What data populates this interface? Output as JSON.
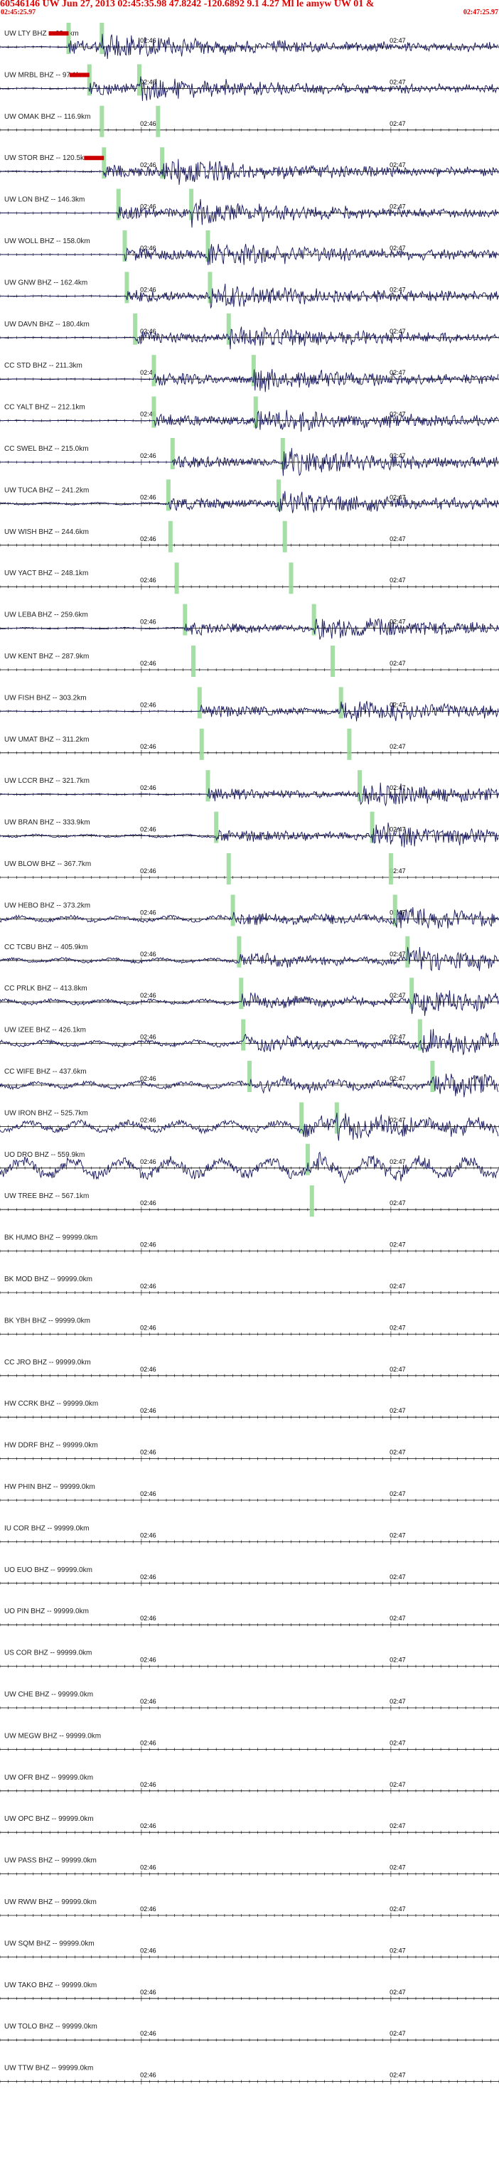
{
  "header": {
    "title": "60546146 UW Jun 27, 2013 02:45:35.98   47.8242  -120.6892  9.1 4.27 Ml le amyw UW 01   &",
    "start_time": "02:45:25.97",
    "end_time": "02:47:25.97"
  },
  "colors": {
    "header_red": "#e00000",
    "trace": "#14145a",
    "pick_marker": "#9bdc9b",
    "baseline": "#000000",
    "phase_flag": "#cc0000"
  },
  "chart_data": {
    "type": "line",
    "title": "60546146 UW Jun 27, 2013 02:45:35.98   47.8242  -120.6892  9.1 4.27 Ml le amyw UW 01   &",
    "time_range": [
      "02:45:25.97",
      "02:47:25.97"
    ],
    "time_ticks": [
      "02:46",
      "02:47"
    ],
    "channels": [
      {
        "label": "UW LTY BHZ -- 63.4km",
        "has_signal": true,
        "p_time": 16.5,
        "s_time": 24.5,
        "p_flag": true,
        "noise": 0.15
      },
      {
        "label": "UW MRBL BHZ -- 97.1km",
        "has_signal": true,
        "p_time": 21.5,
        "s_time": 33.5,
        "p_flag": true,
        "noise": 0.15
      },
      {
        "label": "UW OMAK BHZ -- 116.9km",
        "has_signal": false,
        "p_time": 24.5,
        "s_time": 38.0,
        "p_flag": false,
        "noise": 0
      },
      {
        "label": "UW STOR BHZ -- 120.5km",
        "has_signal": true,
        "p_time": 25.0,
        "s_time": 39.0,
        "p_flag": true,
        "noise": 0.15
      },
      {
        "label": "UW LON BHZ -- 146.3km",
        "has_signal": true,
        "p_time": 28.5,
        "s_time": 46.0,
        "p_flag": false,
        "noise": 0.05
      },
      {
        "label": "UW WOLL BHZ -- 158.0km",
        "has_signal": true,
        "p_time": 30.0,
        "s_time": 50.0,
        "p_flag": false,
        "noise": 0.05
      },
      {
        "label": "UW GNW BHZ -- 162.4km",
        "has_signal": true,
        "p_time": 30.5,
        "s_time": 50.5,
        "p_flag": false,
        "noise": 0.1
      },
      {
        "label": "UW DAVN BHZ -- 180.4km",
        "has_signal": true,
        "p_time": 32.5,
        "s_time": 55.0,
        "p_flag": false,
        "noise": 0.1
      },
      {
        "label": "CC STD BHZ -- 211.3km",
        "has_signal": true,
        "p_time": 37.0,
        "s_time": 61.0,
        "p_flag": false,
        "noise": 0.1
      },
      {
        "label": "CC YALT BHZ -- 212.1km",
        "has_signal": true,
        "p_time": 37.0,
        "s_time": 61.5,
        "p_flag": false,
        "noise": 0.1
      },
      {
        "label": "CC SWEL BHZ -- 215.0km",
        "has_signal": true,
        "p_time": 41.5,
        "s_time": 68.0,
        "p_flag": false,
        "noise": 0.05
      },
      {
        "label": "UW TUCA BHZ -- 241.2km",
        "has_signal": true,
        "p_time": 40.5,
        "s_time": 67.0,
        "p_flag": false,
        "noise": 0.35
      },
      {
        "label": "UW WISH BHZ -- 244.6km",
        "has_signal": false,
        "p_time": 41.0,
        "s_time": 68.5,
        "p_flag": false,
        "noise": 0
      },
      {
        "label": "UW YACT BHZ -- 248.1km",
        "has_signal": false,
        "p_time": 42.5,
        "s_time": 70.0,
        "p_flag": false,
        "noise": 0
      },
      {
        "label": "UW LEBA BHZ -- 259.6km",
        "has_signal": true,
        "p_time": 44.5,
        "s_time": 75.5,
        "p_flag": false,
        "noise": 0.2
      },
      {
        "label": "UW KENT BHZ -- 287.9km",
        "has_signal": false,
        "p_time": 46.5,
        "s_time": 80.0,
        "p_flag": false,
        "noise": 0
      },
      {
        "label": "UW FISH BHZ -- 303.2km",
        "has_signal": true,
        "p_time": 48.0,
        "s_time": 82.0,
        "p_flag": false,
        "noise": 0.1
      },
      {
        "label": "UW UMAT BHZ -- 311.2km",
        "has_signal": false,
        "p_time": 48.5,
        "s_time": 84.0,
        "p_flag": false,
        "noise": 0
      },
      {
        "label": "UW LCCR BHZ -- 321.7km",
        "has_signal": true,
        "p_time": 50.0,
        "s_time": 86.5,
        "p_flag": false,
        "noise": 0.15
      },
      {
        "label": "UW BRAN BHZ -- 333.9km",
        "has_signal": true,
        "p_time": 52.0,
        "s_time": 89.5,
        "p_flag": false,
        "noise": 0.45
      },
      {
        "label": "UW BLOW BHZ -- 367.7km",
        "has_signal": false,
        "p_time": 55.0,
        "s_time": 94.0,
        "p_flag": false,
        "noise": 0
      },
      {
        "label": "UW HEBO BHZ -- 373.2km",
        "has_signal": true,
        "p_time": 56.0,
        "s_time": 95.0,
        "p_flag": false,
        "noise": 0.9
      },
      {
        "label": "CC TCBU BHZ -- 405.9km",
        "has_signal": true,
        "p_time": 57.5,
        "s_time": 98.0,
        "p_flag": false,
        "noise": 0.7
      },
      {
        "label": "CC PRLK BHZ -- 413.8km",
        "has_signal": true,
        "p_time": 58.0,
        "s_time": 99.0,
        "p_flag": false,
        "noise": 0.8
      },
      {
        "label": "UW IZEE BHZ -- 426.1km",
        "has_signal": true,
        "p_time": 58.5,
        "s_time": 101.0,
        "p_flag": false,
        "noise": 0.9
      },
      {
        "label": "CC WIFE BHZ -- 437.6km",
        "has_signal": true,
        "p_time": 60.0,
        "s_time": 104.0,
        "p_flag": false,
        "noise": 1.0
      },
      {
        "label": "UW IRON BHZ -- 525.7km",
        "has_signal": true,
        "p_time": 72.5,
        "s_time": 81.0,
        "p_flag": false,
        "noise": 1.6
      },
      {
        "label": "UO DRO BHZ -- 559.9km",
        "has_signal": true,
        "p_time": 74.0,
        "s_time": null,
        "p_flag": false,
        "noise": 2.8
      },
      {
        "label": "UW TREE BHZ -- 567.1km",
        "has_signal": false,
        "p_time": 75.0,
        "s_time": null,
        "p_flag": false,
        "noise": 0
      },
      {
        "label": "BK HUMO BHZ -- 99999.0km",
        "has_signal": false,
        "p_time": null,
        "s_time": null,
        "p_flag": false,
        "noise": 0
      },
      {
        "label": "BK MOD BHZ -- 99999.0km",
        "has_signal": false,
        "p_time": null,
        "s_time": null,
        "p_flag": false,
        "noise": 0
      },
      {
        "label": "BK YBH BHZ -- 99999.0km",
        "has_signal": false,
        "p_time": null,
        "s_time": null,
        "p_flag": false,
        "noise": 0
      },
      {
        "label": "CC JRO BHZ -- 99999.0km",
        "has_signal": false,
        "p_time": null,
        "s_time": null,
        "p_flag": false,
        "noise": 0
      },
      {
        "label": "HW CCRK BHZ -- 99999.0km",
        "has_signal": false,
        "p_time": null,
        "s_time": null,
        "p_flag": false,
        "noise": 0
      },
      {
        "label": "HW DDRF BHZ -- 99999.0km",
        "has_signal": false,
        "p_time": null,
        "s_time": null,
        "p_flag": false,
        "noise": 0
      },
      {
        "label": "HW PHIN BHZ -- 99999.0km",
        "has_signal": false,
        "p_time": null,
        "s_time": null,
        "p_flag": false,
        "noise": 0
      },
      {
        "label": "IU COR BHZ -- 99999.0km",
        "has_signal": false,
        "p_time": null,
        "s_time": null,
        "p_flag": false,
        "noise": 0
      },
      {
        "label": "UO EUO BHZ -- 99999.0km",
        "has_signal": false,
        "p_time": null,
        "s_time": null,
        "p_flag": false,
        "noise": 0
      },
      {
        "label": "UO PIN BHZ -- 99999.0km",
        "has_signal": false,
        "p_time": null,
        "s_time": null,
        "p_flag": false,
        "noise": 0
      },
      {
        "label": "US COR BHZ -- 99999.0km",
        "has_signal": false,
        "p_time": null,
        "s_time": null,
        "p_flag": false,
        "noise": 0
      },
      {
        "label": "UW CHE BHZ -- 99999.0km",
        "has_signal": false,
        "p_time": null,
        "s_time": null,
        "p_flag": false,
        "noise": 0
      },
      {
        "label": "UW MEGW BHZ -- 99999.0km",
        "has_signal": false,
        "p_time": null,
        "s_time": null,
        "p_flag": false,
        "noise": 0
      },
      {
        "label": "UW OFR BHZ -- 99999.0km",
        "has_signal": false,
        "p_time": null,
        "s_time": null,
        "p_flag": false,
        "noise": 0
      },
      {
        "label": "UW OPC BHZ -- 99999.0km",
        "has_signal": false,
        "p_time": null,
        "s_time": null,
        "p_flag": false,
        "noise": 0
      },
      {
        "label": "UW PASS BHZ -- 99999.0km",
        "has_signal": false,
        "p_time": null,
        "s_time": null,
        "p_flag": false,
        "noise": 0
      },
      {
        "label": "UW RWW BHZ -- 99999.0km",
        "has_signal": false,
        "p_time": null,
        "s_time": null,
        "p_flag": false,
        "noise": 0
      },
      {
        "label": "UW SQM BHZ -- 99999.0km",
        "has_signal": false,
        "p_time": null,
        "s_time": null,
        "p_flag": false,
        "noise": 0
      },
      {
        "label": "UW TAKO BHZ -- 99999.0km",
        "has_signal": false,
        "p_time": null,
        "s_time": null,
        "p_flag": false,
        "noise": 0
      },
      {
        "label": "UW TOLO BHZ -- 99999.0km",
        "has_signal": false,
        "p_time": null,
        "s_time": null,
        "p_flag": false,
        "noise": 0
      },
      {
        "label": "UW TTW BHZ -- 99999.0km",
        "has_signal": false,
        "p_time": null,
        "s_time": null,
        "p_flag": false,
        "noise": 0
      }
    ]
  }
}
